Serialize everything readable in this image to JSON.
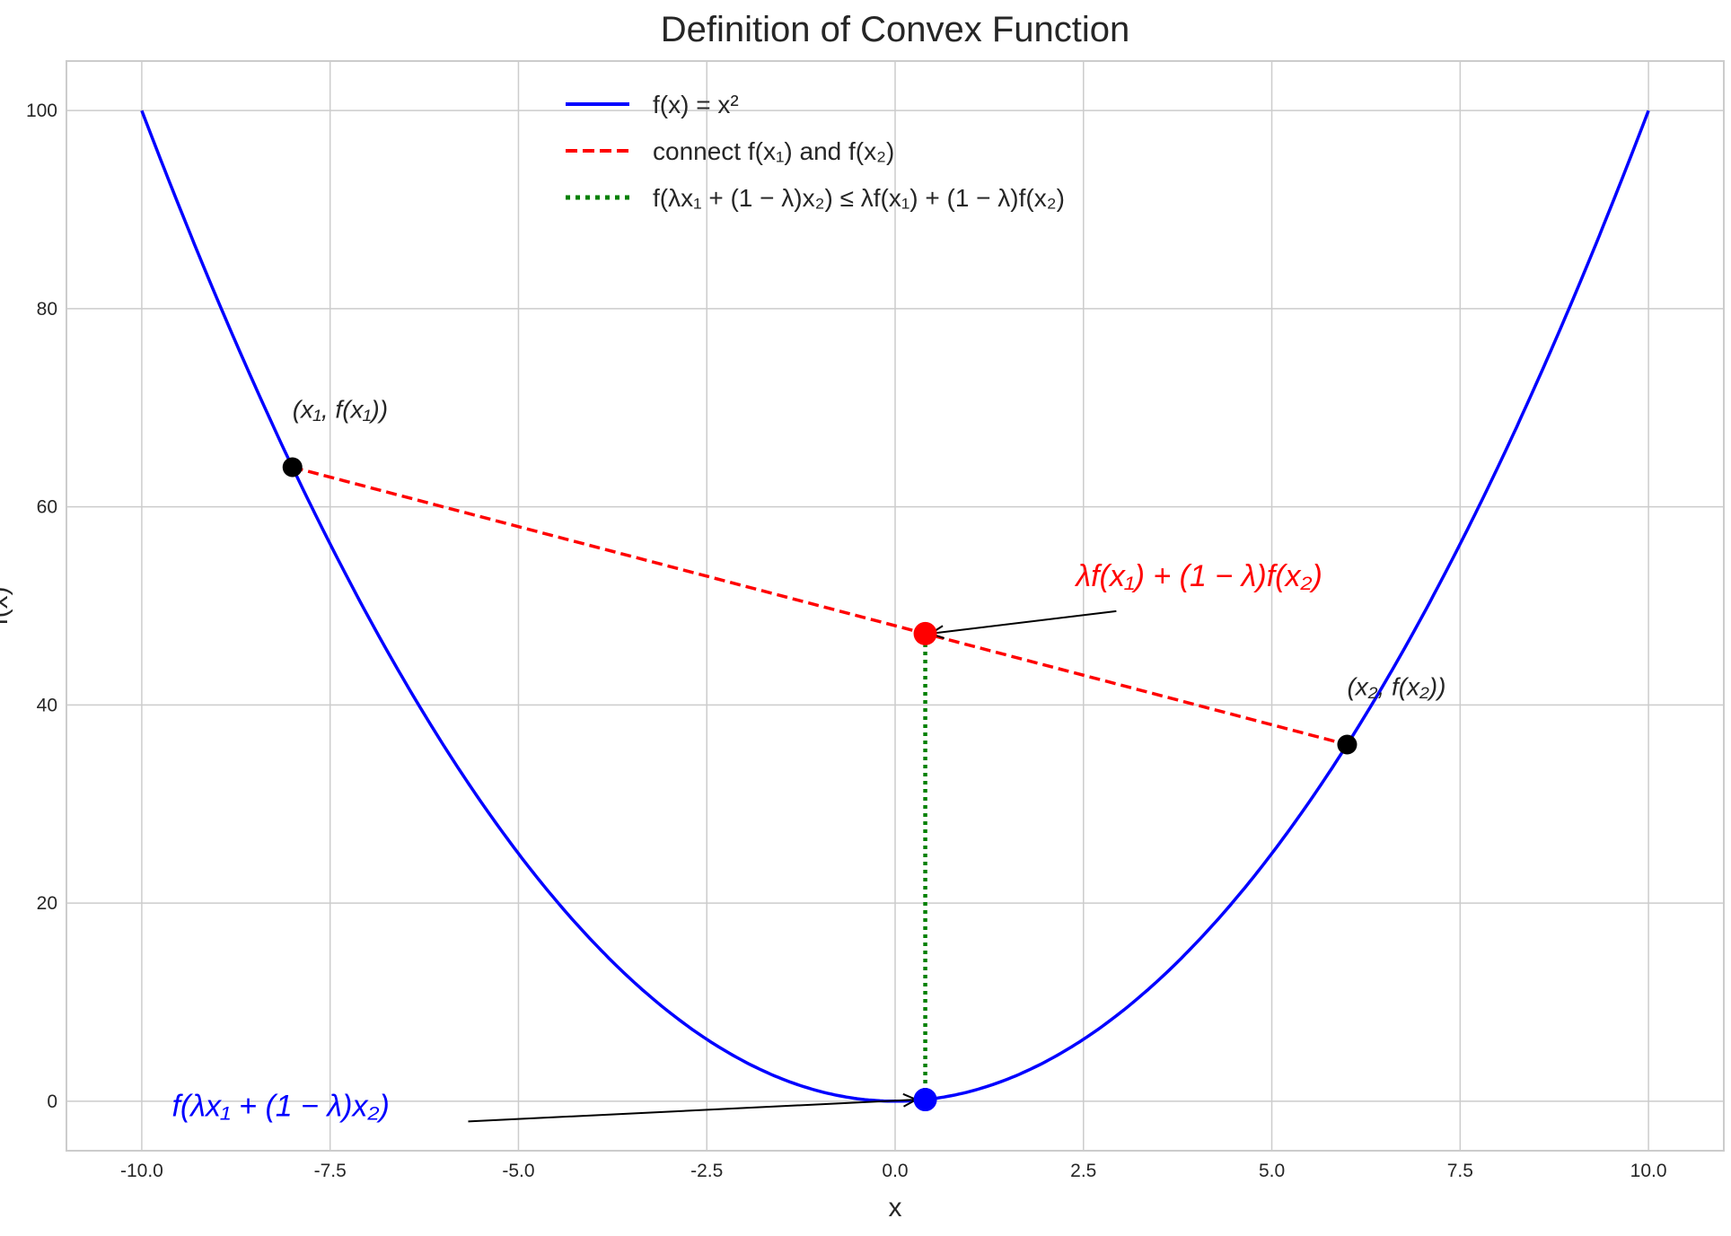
{
  "chart_data": {
    "type": "line",
    "title": "Definition of Convex Function",
    "xlabel": "x",
    "ylabel": "f(x)",
    "xlim": [
      -11,
      11
    ],
    "ylim": [
      -5,
      105
    ],
    "xticks": [
      -10,
      -7.5,
      -5,
      -2.5,
      0,
      2.5,
      5,
      7.5,
      10
    ],
    "xtick_labels": [
      "-10.0",
      "-7.5",
      "-5.0",
      "-2.5",
      "0.0",
      "2.5",
      "5.0",
      "7.5",
      "10.0"
    ],
    "yticks": [
      0,
      20,
      40,
      60,
      80,
      100
    ],
    "ytick_labels": [
      "0",
      "20",
      "40",
      "60",
      "80",
      "100"
    ],
    "grid": true,
    "legend_placement": "upper-center",
    "series": [
      {
        "name": "f(x) = x²",
        "kind": "curve",
        "function": "x^2",
        "x_range": [
          -10,
          10
        ],
        "color": "#0000ff",
        "style": "solid"
      },
      {
        "name": "connect f(x₁) and f(x₂)",
        "kind": "segment",
        "points": [
          [
            -8,
            64
          ],
          [
            6,
            36
          ]
        ],
        "color": "#ff0000",
        "style": "dashed"
      },
      {
        "name": "f(λx₁ + (1 − λ)x₂) ≤ λf(x₁) + (1 − λ)f(x₂)",
        "kind": "segment",
        "points": [
          [
            0.4,
            0.16
          ],
          [
            0.4,
            47.2
          ]
        ],
        "color": "#008000",
        "style": "dotted"
      }
    ],
    "points": [
      {
        "label": "(x₁, f(x₁))",
        "x": -8,
        "y": 64,
        "color": "#000000",
        "label_at": [
          -8,
          69
        ]
      },
      {
        "label": "(x₂, f(x₂))",
        "x": 6,
        "y": 36,
        "color": "#000000",
        "label_at": [
          6,
          41
        ]
      },
      {
        "x": 0.4,
        "y": 47.2,
        "color": "#ff0000"
      },
      {
        "x": 0.4,
        "y": 0.16,
        "color": "#0000ff"
      }
    ],
    "annotations": [
      {
        "text": "λf(x₁) + (1 − λ)f(x₂)",
        "color": "#ff0000",
        "text_at": [
          2.4,
          52
        ],
        "arrow_to": [
          0.4,
          47.2
        ]
      },
      {
        "text": "f(λx₁ + (1 − λ)x₂)",
        "color": "#0000ff",
        "text_at": [
          -9.6,
          -1.5
        ],
        "arrow_to": [
          0.4,
          0.16
        ]
      }
    ]
  }
}
